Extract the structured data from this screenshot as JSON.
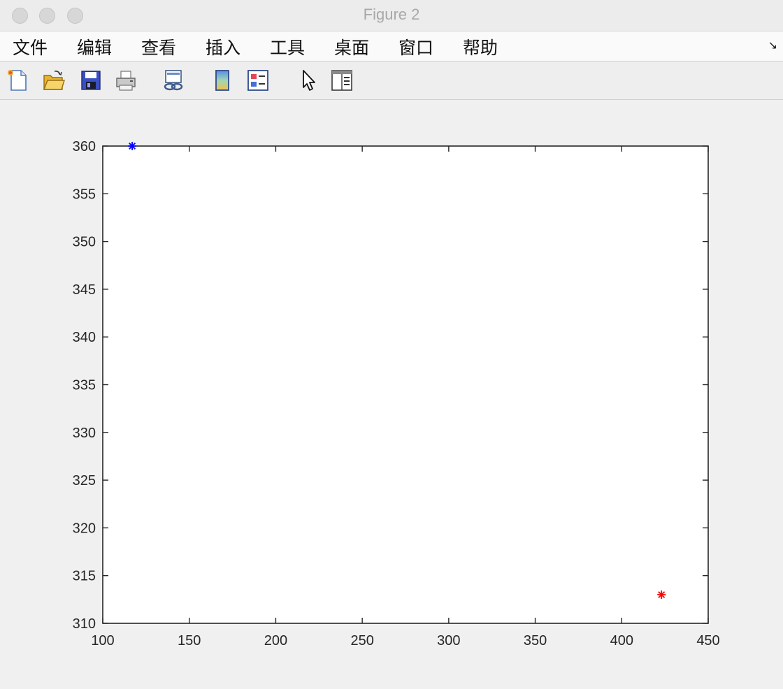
{
  "window": {
    "title": "Figure 2"
  },
  "menu": {
    "items": [
      "文件",
      "编辑",
      "查看",
      "插入",
      "工具",
      "桌面",
      "窗口",
      "帮助"
    ]
  },
  "toolbar": {
    "buttons": [
      {
        "icon": "new-figure-icon"
      },
      {
        "icon": "open-file-icon"
      },
      {
        "icon": "save-icon"
      },
      {
        "icon": "print-icon"
      },
      {
        "icon": "link-plot-icon"
      },
      {
        "icon": "colorbar-icon"
      },
      {
        "icon": "legend-icon"
      },
      {
        "icon": "pointer-icon"
      },
      {
        "icon": "property-inspector-icon"
      }
    ]
  },
  "chart_data": {
    "type": "scatter",
    "title": "",
    "xlabel": "",
    "ylabel": "",
    "xlim": [
      100,
      450
    ],
    "ylim": [
      310,
      360
    ],
    "xticks": [
      100,
      150,
      200,
      250,
      300,
      350,
      400,
      450
    ],
    "yticks": [
      310,
      315,
      320,
      325,
      330,
      335,
      340,
      345,
      350,
      355,
      360
    ],
    "grid": false,
    "series": [
      {
        "marker": "*",
        "color": "#0000ff",
        "points": [
          [
            117,
            360
          ]
        ]
      },
      {
        "marker": "*",
        "color": "#ff0000",
        "points": [
          [
            423,
            313
          ]
        ]
      }
    ]
  }
}
